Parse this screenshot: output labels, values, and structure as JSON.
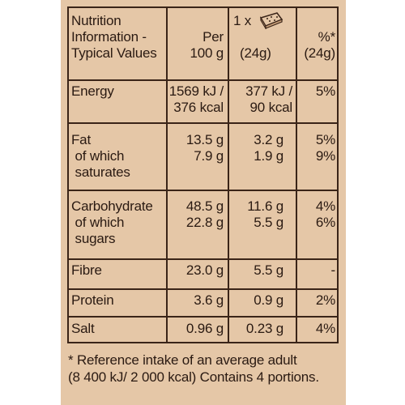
{
  "header": {
    "col1": [
      "Nutrition",
      "Information -",
      "Typical Values"
    ],
    "col2": [
      "Per",
      "100 g"
    ],
    "col3_top": "1 x",
    "col3_bottom": "(24g)",
    "col4": [
      "%*",
      "(24g)"
    ]
  },
  "rows": {
    "energy": {
      "label": "Energy",
      "per100": [
        "1569 kJ /",
        "376 kcal"
      ],
      "portion": [
        "377 kJ /",
        "90 kcal"
      ],
      "ri": "5%"
    },
    "fat": {
      "label": [
        "Fat",
        " of which",
        " saturates"
      ],
      "per100": [
        "13.5 g",
        "7.9 g"
      ],
      "portion": [
        "3.2 g",
        "1.9 g"
      ],
      "ri": [
        "5%",
        "9%"
      ]
    },
    "carbs": {
      "label": [
        "Carbohydrate",
        " of which",
        " sugars"
      ],
      "per100": [
        "48.5 g",
        "22.8 g"
      ],
      "portion": [
        "11.6 g",
        "5.5 g"
      ],
      "ri": [
        "4%",
        "6%"
      ]
    },
    "fibre": {
      "label": "Fibre",
      "per100": "23.0 g",
      "portion": "5.5 g",
      "ri": "-"
    },
    "protein": {
      "label": "Protein",
      "per100": "3.6 g",
      "portion": "0.9 g",
      "ri": "2%"
    },
    "salt": {
      "label": "Salt",
      "per100": "0.96 g",
      "portion": "0.23 g",
      "ri": "4%"
    }
  },
  "footnote": [
    "* Reference intake of an average adult",
    "(8 400 kJ/ 2 000 kcal) Contains 4 portions."
  ],
  "colors": {
    "panel": "#e5c7a7",
    "ink": "#3a2418"
  },
  "icons": {
    "portion": "cereal-bar-icon"
  }
}
